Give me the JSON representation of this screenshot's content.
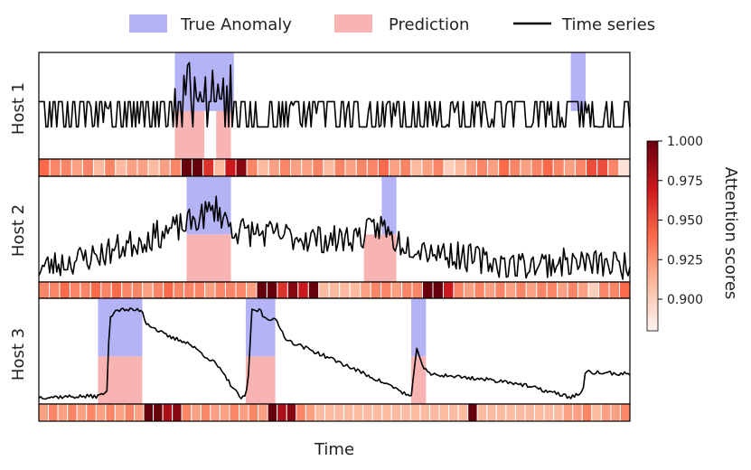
{
  "chart_data": {
    "type": "line",
    "title": "",
    "xlabel": "Time",
    "ylabel": "",
    "legend": {
      "position": "top",
      "items": [
        {
          "label": "True Anomaly",
          "color": "#b3b3f5"
        },
        {
          "label": "Prediction",
          "color": "#f8b3b3"
        },
        {
          "label": "Time series",
          "color": "#000000"
        }
      ]
    },
    "colorbar": {
      "label": "Attention scores",
      "min": 0.88,
      "max": 1.0,
      "ticks": [
        "1.000",
        "0.975",
        "0.950",
        "0.925",
        "0.900"
      ],
      "tick_values": [
        1.0,
        0.975,
        0.95,
        0.925,
        0.9
      ],
      "colors": [
        "#fff5f0",
        "#fcbba1",
        "#fb6a4a",
        "#cb181d",
        "#67000d"
      ]
    },
    "x_range": [
      0,
      100
    ],
    "hosts": [
      {
        "name": "Host 1",
        "y_range": [
          0,
          1
        ],
        "true_anomaly": [
          [
            23,
            33
          ],
          [
            90,
            92.5
          ]
        ],
        "prediction": [
          [
            23,
            28
          ],
          [
            30,
            32.5
          ]
        ],
        "series": {
          "kind": "binary",
          "low": 0.3,
          "high": 0.55,
          "seed": 11,
          "spikes": [
            [
              23,
              33,
              0.95
            ],
            [
              90,
              92,
              0.55
            ]
          ]
        },
        "attention": [
          0.94,
          0.93,
          0.93,
          0.92,
          0.93,
          0.91,
          0.93,
          0.91,
          0.92,
          0.92,
          0.91,
          0.92,
          0.93,
          1.0,
          1.0,
          0.96,
          0.91,
          0.97,
          0.99,
          0.93,
          0.91,
          0.92,
          0.93,
          0.92,
          0.92,
          0.93,
          0.91,
          0.93,
          0.92,
          0.93,
          0.93,
          0.94,
          0.92,
          0.93,
          0.91,
          0.92,
          0.93,
          0.9,
          0.91,
          0.92,
          0.93,
          0.92,
          0.94,
          0.93,
          0.92,
          0.93,
          0.94,
          0.93,
          0.92,
          0.93,
          0.95,
          0.95,
          0.93,
          0.89
        ]
      },
      {
        "name": "Host 2",
        "y_range": [
          0,
          1
        ],
        "true_anomaly": [
          [
            25,
            32.5
          ],
          [
            58,
            60.5
          ]
        ],
        "prediction": [
          [
            25,
            32.5
          ],
          [
            55,
            60.5
          ]
        ],
        "series": {
          "kind": "noisy",
          "seed": 23,
          "trend": [
            [
              0,
              0.12
            ],
            [
              10,
              0.25
            ],
            [
              20,
              0.45
            ],
            [
              25,
              0.55
            ],
            [
              30,
              0.72
            ],
            [
              33,
              0.5
            ],
            [
              40,
              0.45
            ],
            [
              50,
              0.4
            ],
            [
              55,
              0.45
            ],
            [
              58,
              0.55
            ],
            [
              60,
              0.4
            ],
            [
              70,
              0.25
            ],
            [
              80,
              0.15
            ],
            [
              90,
              0.18
            ],
            [
              100,
              0.15
            ]
          ],
          "noise": 0.18
        },
        "attention": [
          0.93,
          0.93,
          0.94,
          0.93,
          0.93,
          0.94,
          0.93,
          0.94,
          0.93,
          0.93,
          0.92,
          0.93,
          0.94,
          0.93,
          0.93,
          0.93,
          0.92,
          0.93,
          0.93,
          0.93,
          0.92,
          1.0,
          1.0,
          0.96,
          0.99,
          0.97,
          1.0,
          0.91,
          0.91,
          0.91,
          0.91,
          0.92,
          0.93,
          0.93,
          0.92,
          0.93,
          0.93,
          1.0,
          1.0,
          0.97,
          0.93,
          0.92,
          0.93,
          0.92,
          0.93,
          0.92,
          0.93,
          0.92,
          0.93,
          0.93,
          0.92,
          0.93,
          0.92,
          0.9,
          0.93,
          0.93,
          0.94
        ]
      },
      {
        "name": "Host 3",
        "y_range": [
          0,
          1
        ],
        "true_anomaly": [
          [
            10,
            17.5
          ],
          [
            35,
            40
          ],
          [
            63,
            65.5
          ]
        ],
        "prediction": [
          [
            10,
            17.5
          ],
          [
            35,
            40
          ],
          [
            63,
            65.5
          ]
        ],
        "series": {
          "kind": "piecewise",
          "seed": 37,
          "points": [
            [
              0,
              0.05
            ],
            [
              10,
              0.06
            ],
            [
              11.5,
              0.1
            ],
            [
              12,
              0.85
            ],
            [
              13,
              0.92
            ],
            [
              17.5,
              0.92
            ],
            [
              18,
              0.8
            ],
            [
              20,
              0.72
            ],
            [
              22,
              0.65
            ],
            [
              25,
              0.6
            ],
            [
              30,
              0.38
            ],
            [
              34,
              0.05
            ],
            [
              35,
              0.04
            ],
            [
              35.5,
              0.3
            ],
            [
              36,
              0.91
            ],
            [
              37.5,
              0.92
            ],
            [
              38,
              0.85
            ],
            [
              40,
              0.82
            ],
            [
              42,
              0.62
            ],
            [
              50,
              0.42
            ],
            [
              60,
              0.15
            ],
            [
              63,
              0.05
            ],
            [
              64,
              0.55
            ],
            [
              65,
              0.35
            ],
            [
              66,
              0.28
            ],
            [
              70,
              0.26
            ],
            [
              80,
              0.2
            ],
            [
              90,
              0.05
            ],
            [
              92,
              0.1
            ],
            [
              92.5,
              0.3
            ],
            [
              100,
              0.28
            ]
          ],
          "noise": 0.02
        },
        "attention": [
          0.92,
          0.93,
          0.92,
          0.93,
          0.92,
          0.93,
          0.92,
          0.93,
          0.92,
          0.93,
          0.92,
          1.0,
          1.0,
          0.98,
          0.99,
          0.93,
          0.92,
          0.93,
          0.92,
          0.92,
          0.93,
          0.92,
          0.93,
          0.92,
          1.0,
          0.98,
          0.99,
          0.93,
          0.92,
          0.91,
          0.91,
          0.91,
          0.91,
          0.91,
          0.91,
          0.91,
          0.91,
          0.91,
          0.91,
          0.91,
          0.91,
          0.91,
          0.91,
          0.91,
          0.91,
          1.0,
          0.91,
          0.91,
          0.91,
          0.91,
          0.91,
          0.91,
          0.91,
          0.91,
          0.91,
          0.92,
          0.92,
          0.93,
          0.91,
          0.92,
          0.92,
          0.93
        ]
      }
    ]
  }
}
